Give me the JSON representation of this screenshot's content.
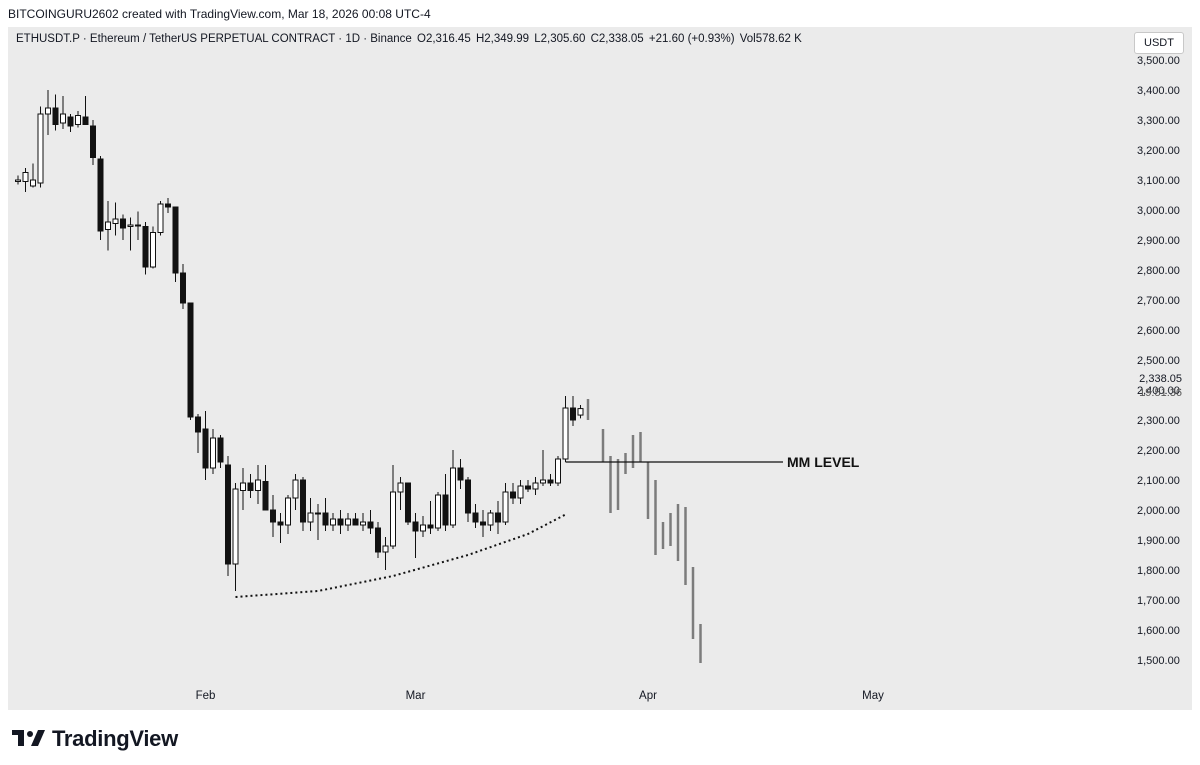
{
  "caption": "BITCOINGURU2602 created with TradingView.com, Mar 18, 2026 00:08 UTC-4",
  "header": {
    "symbol": "ETHUSDT.P · Ethereum / TetherUS PERPETUAL CONTRACT · 1D · Binance",
    "open": "O2,316.45",
    "high": "H2,349.99",
    "low": "L2,305.60",
    "close": "C2,338.05",
    "change": "+21.60 (+0.93%)",
    "volume": "Vol578.62 K"
  },
  "currency": "USDT",
  "last_price": {
    "value": "2,338.05",
    "countdown": "19:51:36"
  },
  "brand": "TradingView",
  "colors": {
    "background": "#ebebeb",
    "candle_bear": "#111111",
    "candle_bull": "#ffffff",
    "projection": "#7c7c7c",
    "text": "#131722"
  },
  "chart_data": {
    "type": "candlestick",
    "y_axis": {
      "min": 1450,
      "max": 3560,
      "side": "right",
      "ticks": [
        3500,
        3400,
        3300,
        3200,
        3100,
        3000,
        2900,
        2800,
        2700,
        2600,
        2500,
        2400,
        2300,
        2200,
        2100,
        2000,
        1900,
        1800,
        1700,
        1600,
        1500
      ],
      "tick_labels": [
        "3,500.00",
        "3,400.00",
        "3,300.00",
        "3,200.00",
        "3,100.00",
        "3,000.00",
        "2,900.00",
        "2,800.00",
        "2,700.00",
        "2,600.00",
        "2,500.00",
        "2,400.00",
        "2,300.00",
        "2,200.00",
        "2,100.00",
        "2,000.00",
        "1,900.00",
        "1,800.00",
        "1,700.00",
        "1,600.00",
        "1,500.00"
      ]
    },
    "x_axis": {
      "labels": [
        {
          "text": "Feb",
          "day": 25
        },
        {
          "text": "Mar",
          "day": 53
        },
        {
          "text": "Apr",
          "day": 84
        },
        {
          "text": "May",
          "day": 114
        }
      ]
    },
    "candles": [
      {
        "day": 0,
        "o": 3095,
        "h": 3115,
        "l": 3085,
        "c": 3100
      },
      {
        "day": 1,
        "o": 3095,
        "h": 3140,
        "l": 3060,
        "c": 3125
      },
      {
        "day": 2,
        "o": 3080,
        "h": 3155,
        "l": 3075,
        "c": 3100
      },
      {
        "day": 3,
        "o": 3090,
        "h": 3345,
        "l": 3075,
        "c": 3320
      },
      {
        "day": 4,
        "o": 3320,
        "h": 3400,
        "l": 3250,
        "c": 3340
      },
      {
        "day": 5,
        "o": 3340,
        "h": 3385,
        "l": 3265,
        "c": 3285
      },
      {
        "day": 6,
        "o": 3290,
        "h": 3380,
        "l": 3270,
        "c": 3320
      },
      {
        "day": 7,
        "o": 3310,
        "h": 3320,
        "l": 3260,
        "c": 3280
      },
      {
        "day": 8,
        "o": 3285,
        "h": 3330,
        "l": 3275,
        "c": 3315
      },
      {
        "day": 9,
        "o": 3310,
        "h": 3380,
        "l": 3290,
        "c": 3285
      },
      {
        "day": 10,
        "o": 3280,
        "h": 3300,
        "l": 3150,
        "c": 3175
      },
      {
        "day": 11,
        "o": 3170,
        "h": 3180,
        "l": 2900,
        "c": 2930
      },
      {
        "day": 12,
        "o": 2935,
        "h": 3030,
        "l": 2865,
        "c": 2960
      },
      {
        "day": 13,
        "o": 2955,
        "h": 3025,
        "l": 2915,
        "c": 2970
      },
      {
        "day": 14,
        "o": 2970,
        "h": 2985,
        "l": 2900,
        "c": 2940
      },
      {
        "day": 15,
        "o": 2945,
        "h": 2975,
        "l": 2865,
        "c": 2950
      },
      {
        "day": 16,
        "o": 2950,
        "h": 2995,
        "l": 2900,
        "c": 2950
      },
      {
        "day": 17,
        "o": 2945,
        "h": 2960,
        "l": 2785,
        "c": 2810
      },
      {
        "day": 18,
        "o": 2810,
        "h": 2945,
        "l": 2805,
        "c": 2925
      },
      {
        "day": 19,
        "o": 2925,
        "h": 3030,
        "l": 2915,
        "c": 3020
      },
      {
        "day": 20,
        "o": 3020,
        "h": 3040,
        "l": 2990,
        "c": 3010
      },
      {
        "day": 21,
        "o": 3010,
        "h": 3010,
        "l": 2760,
        "c": 2790
      },
      {
        "day": 22,
        "o": 2790,
        "h": 2820,
        "l": 2670,
        "c": 2690
      },
      {
        "day": 23,
        "o": 2690,
        "h": 2690,
        "l": 2300,
        "c": 2310
      },
      {
        "day": 24,
        "o": 2310,
        "h": 2320,
        "l": 2190,
        "c": 2260
      },
      {
        "day": 25,
        "o": 2270,
        "h": 2330,
        "l": 2100,
        "c": 2140
      },
      {
        "day": 26,
        "o": 2140,
        "h": 2270,
        "l": 2120,
        "c": 2240
      },
      {
        "day": 27,
        "o": 2240,
        "h": 2250,
        "l": 2140,
        "c": 2160
      },
      {
        "day": 28,
        "o": 2150,
        "h": 2180,
        "l": 1780,
        "c": 1820
      },
      {
        "day": 29,
        "o": 1820,
        "h": 2090,
        "l": 1730,
        "c": 2070
      },
      {
        "day": 30,
        "o": 2065,
        "h": 2140,
        "l": 2000,
        "c": 2090
      },
      {
        "day": 31,
        "o": 2090,
        "h": 2120,
        "l": 2040,
        "c": 2065
      },
      {
        "day": 32,
        "o": 2065,
        "h": 2150,
        "l": 2020,
        "c": 2100
      },
      {
        "day": 33,
        "o": 2095,
        "h": 2150,
        "l": 2000,
        "c": 2000
      },
      {
        "day": 34,
        "o": 2000,
        "h": 2050,
        "l": 1910,
        "c": 1960
      },
      {
        "day": 35,
        "o": 1960,
        "h": 1990,
        "l": 1890,
        "c": 1950
      },
      {
        "day": 36,
        "o": 1950,
        "h": 2050,
        "l": 1920,
        "c": 2040
      },
      {
        "day": 37,
        "o": 2040,
        "h": 2120,
        "l": 2000,
        "c": 2100
      },
      {
        "day": 38,
        "o": 2100,
        "h": 2110,
        "l": 1930,
        "c": 1960
      },
      {
        "day": 39,
        "o": 1960,
        "h": 2040,
        "l": 1930,
        "c": 1990
      },
      {
        "day": 40,
        "o": 1990,
        "h": 2020,
        "l": 1900,
        "c": 1990
      },
      {
        "day": 41,
        "o": 1990,
        "h": 2040,
        "l": 1930,
        "c": 1950
      },
      {
        "day": 42,
        "o": 1950,
        "h": 1990,
        "l": 1930,
        "c": 1970
      },
      {
        "day": 43,
        "o": 1970,
        "h": 2000,
        "l": 1920,
        "c": 1950
      },
      {
        "day": 44,
        "o": 1950,
        "h": 1990,
        "l": 1930,
        "c": 1970
      },
      {
        "day": 45,
        "o": 1970,
        "h": 1990,
        "l": 1950,
        "c": 1950
      },
      {
        "day": 46,
        "o": 1950,
        "h": 1990,
        "l": 1930,
        "c": 1960
      },
      {
        "day": 47,
        "o": 1960,
        "h": 2000,
        "l": 1920,
        "c": 1940
      },
      {
        "day": 48,
        "o": 1940,
        "h": 1960,
        "l": 1840,
        "c": 1860
      },
      {
        "day": 49,
        "o": 1860,
        "h": 1910,
        "l": 1800,
        "c": 1880
      },
      {
        "day": 50,
        "o": 1880,
        "h": 2150,
        "l": 1870,
        "c": 2060
      },
      {
        "day": 51,
        "o": 2060,
        "h": 2110,
        "l": 2000,
        "c": 2090
      },
      {
        "day": 52,
        "o": 2090,
        "h": 2090,
        "l": 1950,
        "c": 1960
      },
      {
        "day": 53,
        "o": 1960,
        "h": 1990,
        "l": 1840,
        "c": 1930
      },
      {
        "day": 54,
        "o": 1930,
        "h": 1980,
        "l": 1910,
        "c": 1950
      },
      {
        "day": 55,
        "o": 1950,
        "h": 2030,
        "l": 1920,
        "c": 1940
      },
      {
        "day": 56,
        "o": 1940,
        "h": 2060,
        "l": 1930,
        "c": 2050
      },
      {
        "day": 57,
        "o": 2050,
        "h": 2120,
        "l": 1930,
        "c": 1950
      },
      {
        "day": 58,
        "o": 1950,
        "h": 2200,
        "l": 1940,
        "c": 2140
      },
      {
        "day": 59,
        "o": 2140,
        "h": 2170,
        "l": 2070,
        "c": 2100
      },
      {
        "day": 60,
        "o": 2100,
        "h": 2110,
        "l": 1960,
        "c": 1990
      },
      {
        "day": 61,
        "o": 1990,
        "h": 2020,
        "l": 1940,
        "c": 1960
      },
      {
        "day": 62,
        "o": 1960,
        "h": 2000,
        "l": 1910,
        "c": 1950
      },
      {
        "day": 63,
        "o": 1950,
        "h": 2000,
        "l": 1930,
        "c": 1990
      },
      {
        "day": 64,
        "o": 1990,
        "h": 2030,
        "l": 1920,
        "c": 1960
      },
      {
        "day": 65,
        "o": 1960,
        "h": 2090,
        "l": 1950,
        "c": 2060
      },
      {
        "day": 66,
        "o": 2060,
        "h": 2090,
        "l": 2020,
        "c": 2040
      },
      {
        "day": 67,
        "o": 2040,
        "h": 2100,
        "l": 2020,
        "c": 2080
      },
      {
        "day": 68,
        "o": 2080,
        "h": 2100,
        "l": 2060,
        "c": 2070
      },
      {
        "day": 69,
        "o": 2070,
        "h": 2110,
        "l": 2050,
        "c": 2090
      },
      {
        "day": 70,
        "o": 2090,
        "h": 2200,
        "l": 2080,
        "c": 2100
      },
      {
        "day": 71,
        "o": 2100,
        "h": 2120,
        "l": 2080,
        "c": 2090
      },
      {
        "day": 72,
        "o": 2090,
        "h": 2180,
        "l": 2080,
        "c": 2170
      },
      {
        "day": 73,
        "o": 2170,
        "h": 2380,
        "l": 2160,
        "c": 2340
      },
      {
        "day": 74,
        "o": 2340,
        "h": 2380,
        "l": 2280,
        "c": 2300
      },
      {
        "day": 75,
        "o": 2316.45,
        "h": 2349.99,
        "l": 2305.6,
        "c": 2338.05
      }
    ],
    "projection_bars": [
      {
        "day": 76,
        "h": 2370,
        "l": 2300
      },
      {
        "day": 78,
        "h": 2270,
        "l": 2160
      },
      {
        "day": 79,
        "h": 2180,
        "l": 1990
      },
      {
        "day": 80,
        "h": 2170,
        "l": 2000
      },
      {
        "day": 81,
        "h": 2190,
        "l": 2120
      },
      {
        "day": 82,
        "h": 2250,
        "l": 2140
      },
      {
        "day": 83,
        "h": 2260,
        "l": 2160
      },
      {
        "day": 84,
        "h": 2160,
        "l": 1970
      },
      {
        "day": 85,
        "h": 2100,
        "l": 1850
      },
      {
        "day": 86,
        "h": 1960,
        "l": 1870
      },
      {
        "day": 87,
        "h": 1990,
        "l": 1880
      },
      {
        "day": 88,
        "h": 2020,
        "l": 1830
      },
      {
        "day": 89,
        "h": 2010,
        "l": 1750
      },
      {
        "day": 90,
        "h": 1810,
        "l": 1570
      },
      {
        "day": 91,
        "h": 1620,
        "l": 1490
      }
    ],
    "annotations": [
      {
        "type": "horizontal_line",
        "label": "MM LEVEL",
        "value": 2160,
        "from_day": 73,
        "to_day": 102
      },
      {
        "type": "dotted_curve",
        "label": "",
        "points": [
          [
            29,
            1710
          ],
          [
            40,
            1730
          ],
          [
            50,
            1780
          ],
          [
            60,
            1850
          ],
          [
            68,
            1920
          ],
          [
            73,
            1985
          ]
        ]
      }
    ]
  }
}
